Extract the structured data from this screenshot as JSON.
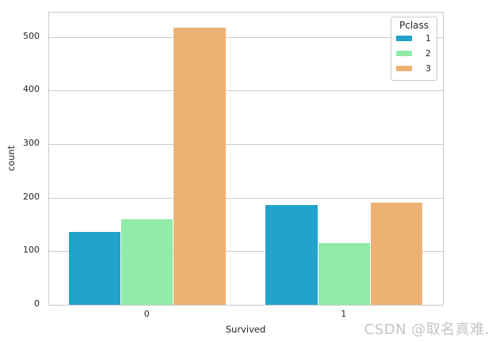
{
  "watermark": "CSDN @取名真难.",
  "style": {
    "bg": "#ffffff",
    "grid": "#cccccc",
    "spine": "#c9c9c9",
    "text": "#262626",
    "watermark": "#c5c5c5"
  },
  "chart_data": {
    "type": "bar",
    "title": "",
    "xlabel": "Survived",
    "ylabel": "count",
    "categories": [
      "0",
      "1"
    ],
    "series": [
      {
        "name": "1",
        "color": "#22a3cb",
        "values": [
          136,
          186
        ]
      },
      {
        "name": "2",
        "color": "#8feba6",
        "values": [
          160,
          116
        ]
      },
      {
        "name": "3",
        "color": "#edb273",
        "values": [
          517,
          190
        ]
      }
    ],
    "yticks": [
      0,
      100,
      200,
      300,
      400,
      500
    ],
    "ylim": [
      0,
      545
    ],
    "grid": true,
    "legend": {
      "title": "Pclass",
      "position": "upper right"
    }
  }
}
